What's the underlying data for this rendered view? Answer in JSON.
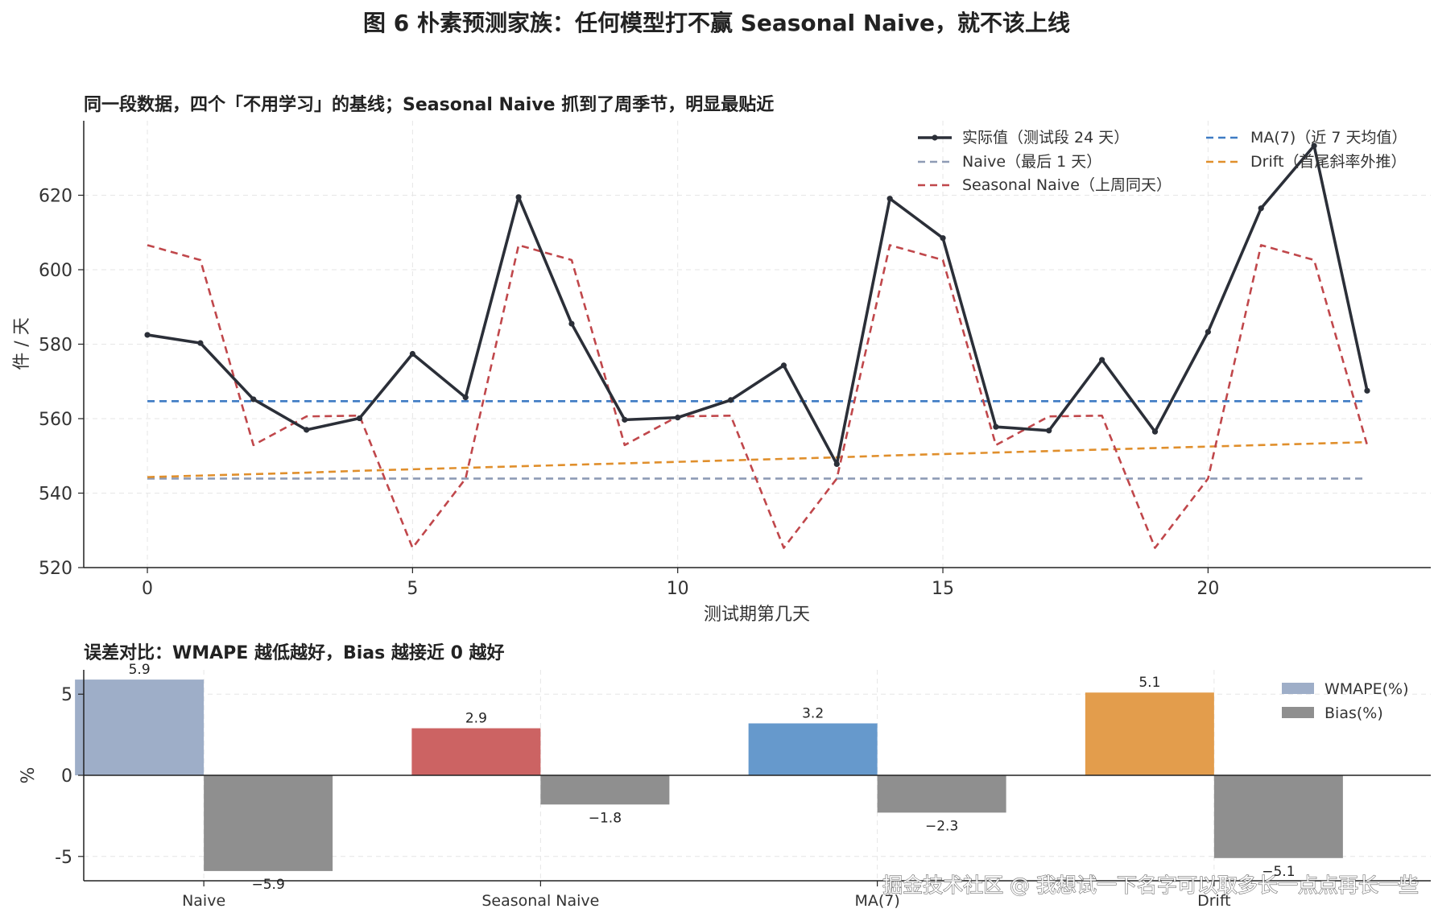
{
  "figure": {
    "title": "图 6  朴素预测家族：任何模型打不赢 Seasonal Naive，就不该上线",
    "watermark": "掘金技术社区 @ 我想试一下名字可以取多长一点点再长一些"
  },
  "colors": {
    "actual": "#2b2f38",
    "naive": "#8e9bb5",
    "seasonal": "#c0474b",
    "ma": "#3e7bc4",
    "drift": "#e08f2c",
    "bias": "#8f8f8f",
    "wmape_naive": "#9eaec8",
    "wmape_seasonal": "#cc6363",
    "wmape_ma": "#6699cc",
    "wmape_drift": "#e39d4c"
  },
  "chart_data": [
    {
      "type": "line",
      "title": "同一段数据，四个「不用学习」的基线；Seasonal Naive 抓到了周季节，明显最贴近",
      "xlabel": "测试期第几天",
      "ylabel": "件 / 天",
      "xlim": [
        -1.2,
        24.2
      ],
      "ylim": [
        520,
        640
      ],
      "xticks": [
        0,
        5,
        10,
        15,
        20
      ],
      "yticks": [
        520,
        540,
        560,
        580,
        600,
        620
      ],
      "grid": true,
      "legend_position": "top-right",
      "x": [
        0,
        1,
        2,
        3,
        4,
        5,
        6,
        7,
        8,
        9,
        10,
        11,
        12,
        13,
        14,
        15,
        16,
        17,
        18,
        19,
        20,
        21,
        22,
        23
      ],
      "series": [
        {
          "name": "实际值（测试段 24 天）",
          "key": "actual",
          "style": "solid-marker",
          "values": [
            582.5,
            580.3,
            565.2,
            557.0,
            560.1,
            577.4,
            565.7,
            619.5,
            585.5,
            559.7,
            560.3,
            565.0,
            574.3,
            547.8,
            619.1,
            608.5,
            557.8,
            556.8,
            575.8,
            556.5,
            583.3,
            616.5,
            633.3,
            567.5
          ]
        },
        {
          "name": "Naive（最后 1 天）",
          "key": "naive",
          "style": "dashed",
          "values": [
            543.9,
            543.9,
            543.9,
            543.9,
            543.9,
            543.9,
            543.9,
            543.9,
            543.9,
            543.9,
            543.9,
            543.9,
            543.9,
            543.9,
            543.9,
            543.9,
            543.9,
            543.9,
            543.9,
            543.9,
            543.9,
            543.9,
            543.9,
            543.9
          ]
        },
        {
          "name": "Seasonal Naive（上周同天）",
          "key": "seasonal",
          "style": "dashed",
          "values": [
            606.6,
            602.6,
            552.9,
            560.6,
            560.8,
            525.3,
            543.9,
            606.6,
            602.6,
            552.9,
            560.6,
            560.8,
            525.3,
            543.9,
            606.6,
            602.6,
            552.9,
            560.6,
            560.8,
            525.3,
            543.9,
            606.6,
            602.6,
            552.9
          ]
        },
        {
          "name": "MA(7)（近 7 天均值）",
          "key": "ma",
          "style": "dashed",
          "values": [
            564.7,
            564.7,
            564.7,
            564.7,
            564.7,
            564.7,
            564.7,
            564.7,
            564.7,
            564.7,
            564.7,
            564.7,
            564.7,
            564.7,
            564.7,
            564.7,
            564.7,
            564.7,
            564.7,
            564.7,
            564.7,
            564.7,
            564.7,
            564.7
          ]
        },
        {
          "name": "Drift（首尾斜率外推）",
          "key": "drift",
          "style": "dashed",
          "values": [
            544.3,
            544.7,
            545.1,
            545.5,
            546.0,
            546.4,
            546.8,
            547.2,
            547.6,
            548.0,
            548.4,
            548.8,
            549.2,
            549.6,
            550.1,
            550.5,
            550.9,
            551.3,
            551.7,
            552.1,
            552.5,
            552.9,
            553.3,
            553.7
          ]
        }
      ]
    },
    {
      "type": "bar",
      "title": "误差对比：WMAPE 越低越好，Bias 越接近 0 越好",
      "xlabel": "",
      "ylabel": "%",
      "categories": [
        "Naive",
        "Seasonal Naive",
        "MA(7)",
        "Drift"
      ],
      "ylim": [
        -6.5,
        6.5
      ],
      "yticks": [
        -5,
        0,
        5
      ],
      "grid": true,
      "legend_position": "top-right",
      "series": [
        {
          "name": "WMAPE(%)",
          "key": "wmape",
          "values": [
            5.9,
            2.9,
            3.2,
            5.1
          ],
          "labels": [
            "5.9",
            "2.9",
            "3.2",
            "5.1"
          ]
        },
        {
          "name": "Bias(%)",
          "key": "bias",
          "values": [
            -5.9,
            -1.8,
            -2.3,
            -5.1
          ],
          "labels": [
            "−5.9",
            "−1.8",
            "−2.3",
            "−5.1"
          ]
        }
      ]
    }
  ]
}
